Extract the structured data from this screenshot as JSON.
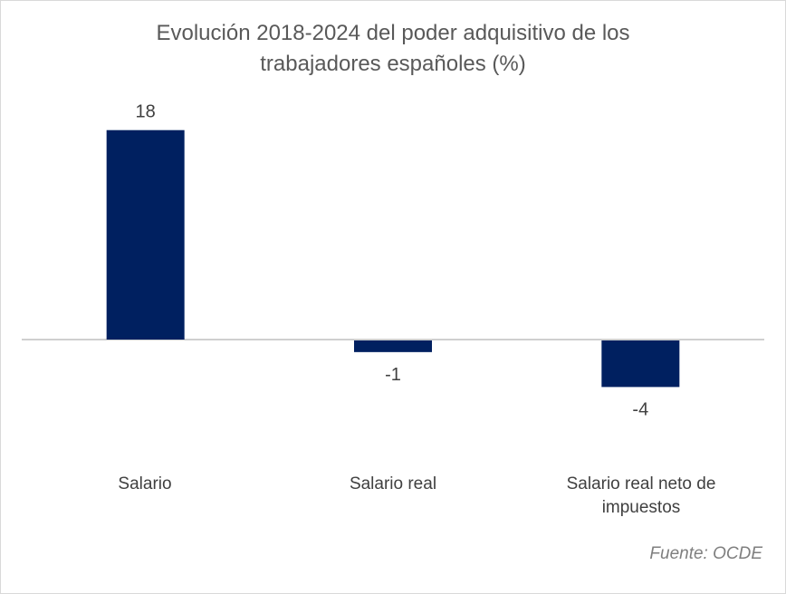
{
  "chart_data": {
    "type": "bar",
    "title_lines": [
      "Evolución 2018-2024 del poder adquisitivo de los",
      "trabajadores españoles (%)"
    ],
    "categories": [
      "Salario",
      "Salario real",
      "Salario real neto de impuestos"
    ],
    "category_label_lines": [
      [
        "Salario"
      ],
      [
        "Salario real"
      ],
      [
        "Salario real neto de",
        "impuestos"
      ]
    ],
    "values": [
      18,
      -1,
      -4
    ],
    "data_labels": [
      "18",
      "-1",
      "-4"
    ],
    "ylim": [
      -6,
      20
    ],
    "grid": false,
    "legend": "none",
    "bar_color": "#002060",
    "axis_color": "#bfbfbf",
    "source": "Fuente: OCDE"
  }
}
